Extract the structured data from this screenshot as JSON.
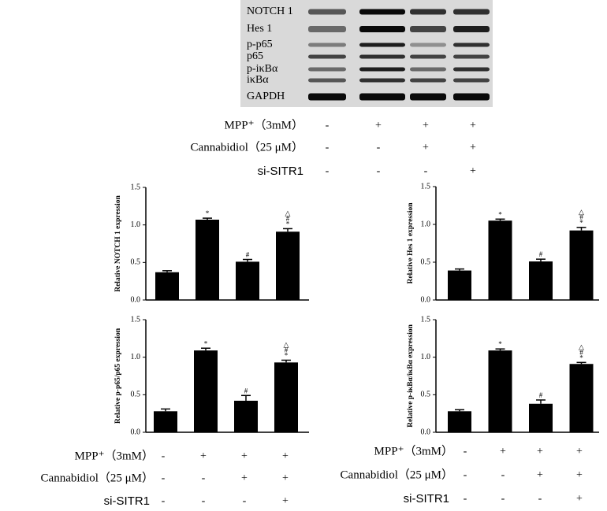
{
  "blot": {
    "labels": [
      "NOTCH 1",
      "Hes 1",
      "p-p65",
      "p65",
      "p-iκBα",
      "iκBα",
      "GAPDH"
    ]
  },
  "treatments": [
    {
      "rows": [
        {
          "label": "MPP⁺（3mM）",
          "signs": [
            "-",
            "+",
            "+",
            "+"
          ]
        },
        {
          "label": "Cannabidiol（25 μM）",
          "signs": [
            "-",
            "-",
            "+",
            "+"
          ]
        },
        {
          "label": "si-SITR1",
          "signs": [
            "-",
            "-",
            "-",
            "+"
          ]
        }
      ]
    },
    {
      "rows": [
        {
          "label": "MPP⁺（3mM）",
          "signs": [
            "-",
            "+",
            "+",
            "+"
          ]
        },
        {
          "label": "Cannabidiol（25 μM）",
          "signs": [
            "-",
            "-",
            "+",
            "+"
          ]
        },
        {
          "label": "si-SITR1",
          "signs": [
            "-",
            "-",
            "-",
            "+"
          ]
        }
      ]
    },
    {
      "rows": [
        {
          "label": "MPP⁺（3mM）",
          "signs": [
            "-",
            "+",
            "+",
            "+"
          ]
        },
        {
          "label": "Cannabidiol（25 μM）",
          "signs": [
            "-",
            "-",
            "+",
            "+"
          ]
        },
        {
          "label": "si-SITR1",
          "signs": [
            "-",
            "-",
            "-",
            "+"
          ]
        }
      ]
    }
  ],
  "chart_data": [
    {
      "type": "bar",
      "ylabel": "Relative NOTCH 1 expression",
      "color": "#000000",
      "values": [
        0.37,
        1.07,
        0.51,
        0.91
      ],
      "errors": [
        0.02,
        0.02,
        0.03,
        0.04
      ],
      "markers": [
        [],
        [
          "*"
        ],
        [
          "#"
        ],
        [
          "△",
          "#",
          "*"
        ]
      ],
      "ylim": [
        0,
        1.5
      ],
      "yticks": [
        {
          "value": 0,
          "label": "0.0"
        },
        0.5,
        {
          "value": 1,
          "label": "1.0"
        },
        1.5
      ]
    },
    {
      "type": "bar",
      "ylabel": "Relative Hes 1 expression",
      "color": "#000000",
      "values": [
        0.39,
        1.05,
        0.51,
        0.92
      ],
      "errors": [
        0.02,
        0.02,
        0.03,
        0.04
      ],
      "markers": [
        [],
        [
          "*"
        ],
        [
          "#"
        ],
        [
          "△",
          "#",
          "*"
        ]
      ],
      "ylim": [
        0,
        1.5
      ],
      "yticks": [
        {
          "value": 0,
          "label": "0.0"
        },
        0.5,
        {
          "value": 1,
          "label": "1.0"
        },
        1.5
      ]
    },
    {
      "type": "bar",
      "ylabel": "Relative p-p65/p65 expression",
      "color": "#000000",
      "values": [
        0.28,
        1.09,
        0.42,
        0.93
      ],
      "errors": [
        0.03,
        0.03,
        0.07,
        0.03
      ],
      "markers": [
        [],
        [
          "*"
        ],
        [
          "#"
        ],
        [
          "△",
          "#",
          "*"
        ]
      ],
      "ylim": [
        0,
        1.5
      ],
      "yticks": [
        {
          "value": 0,
          "label": "0.0"
        },
        0.5,
        {
          "value": 1,
          "label": "1.0"
        },
        1.5
      ]
    },
    {
      "type": "bar",
      "ylabel": "Relative p-iκBα/iκBα expression",
      "color": "#000000",
      "values": [
        0.28,
        1.09,
        0.38,
        0.91
      ],
      "errors": [
        0.02,
        0.02,
        0.05,
        0.02
      ],
      "markers": [
        [],
        [
          "*"
        ],
        [
          "#"
        ],
        [
          "△",
          "#",
          "*"
        ]
      ],
      "ylim": [
        0,
        1.5
      ],
      "yticks": [
        {
          "value": 0,
          "label": "0.0"
        },
        0.5,
        {
          "value": 1,
          "label": "1.0"
        },
        1.5
      ]
    }
  ]
}
